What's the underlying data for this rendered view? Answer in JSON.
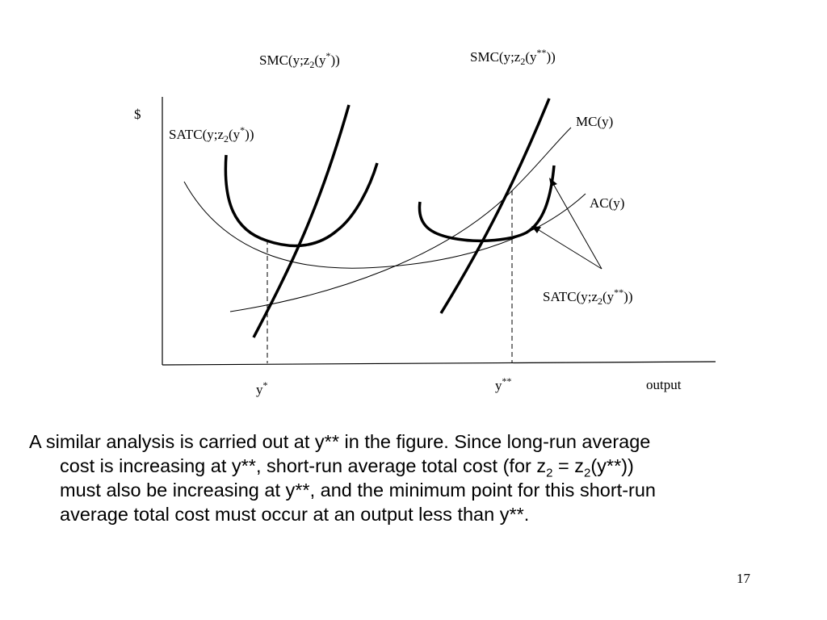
{
  "figure": {
    "labels": {
      "smc_star": {
        "base": "SMC(y;z",
        "sub": "2",
        "mid": "(y",
        "sup": "*",
        "end": "))"
      },
      "smc_starstar": {
        "base": "SMC(y;z",
        "sub": "2",
        "mid": "(y",
        "sup": "**",
        "end": "))"
      },
      "satc_star": {
        "base": "SATC(y;z",
        "sub": "2",
        "mid": "(y",
        "sup": "*",
        "end": "))"
      },
      "satc_starstar": {
        "base": "SATC(y;z",
        "sub": "2",
        "mid": "(y",
        "sup": "**",
        "end": "))"
      },
      "mc": "MC(y)",
      "ac": "AC(y)",
      "dollar": "$",
      "output": "output",
      "ystar": {
        "base": "y",
        "sup": "*"
      },
      "ystarstar": {
        "base": "y",
        "sup": "**"
      }
    }
  },
  "paragraph": {
    "line1": "A similar analysis is carried out at y** in the figure. Since long-run average",
    "line2a": "cost is increasing at y**, short-run average total cost (for z",
    "line2_sub1": "2",
    "line2b": " = z",
    "line2_sub2": "2",
    "line2c": "(y**))",
    "line3": "must also be increasing at y**, and the minimum point for this short-run",
    "line4": "average total cost must occur at an output less than y**."
  },
  "page_number": "17"
}
